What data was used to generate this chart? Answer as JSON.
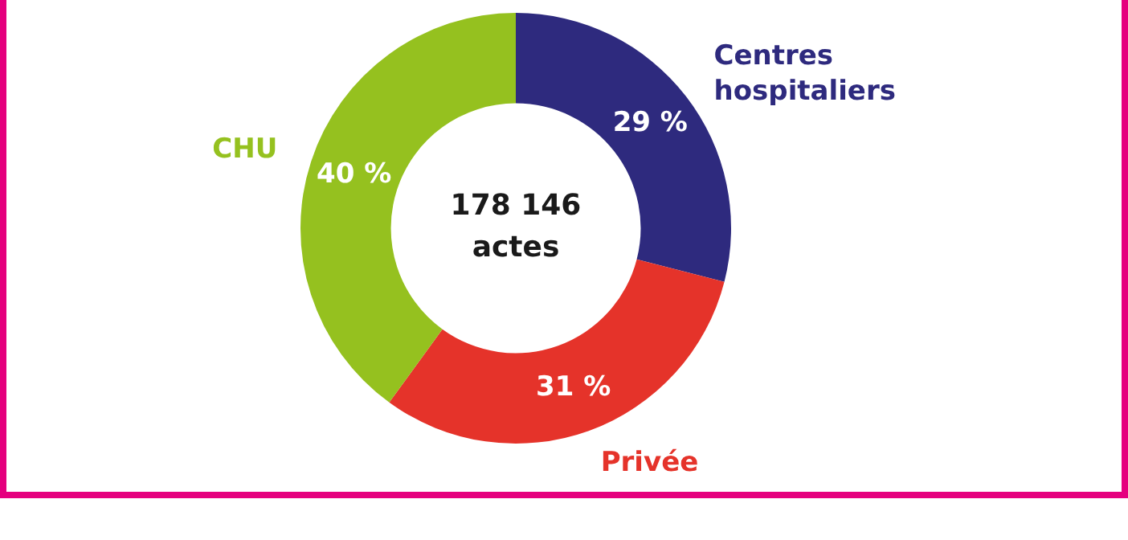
{
  "chart_data": {
    "type": "donut",
    "categories": [
      "Centres hospitaliers",
      "Privée",
      "CHU"
    ],
    "values": [
      29,
      31,
      40
    ],
    "colors": [
      "#2e2a7e",
      "#e5332a",
      "#95c11f"
    ],
    "value_labels": [
      "29 %",
      "31 %",
      "40 %"
    ],
    "legend": false,
    "annotations": [
      "178 146 actes"
    ]
  }
}
